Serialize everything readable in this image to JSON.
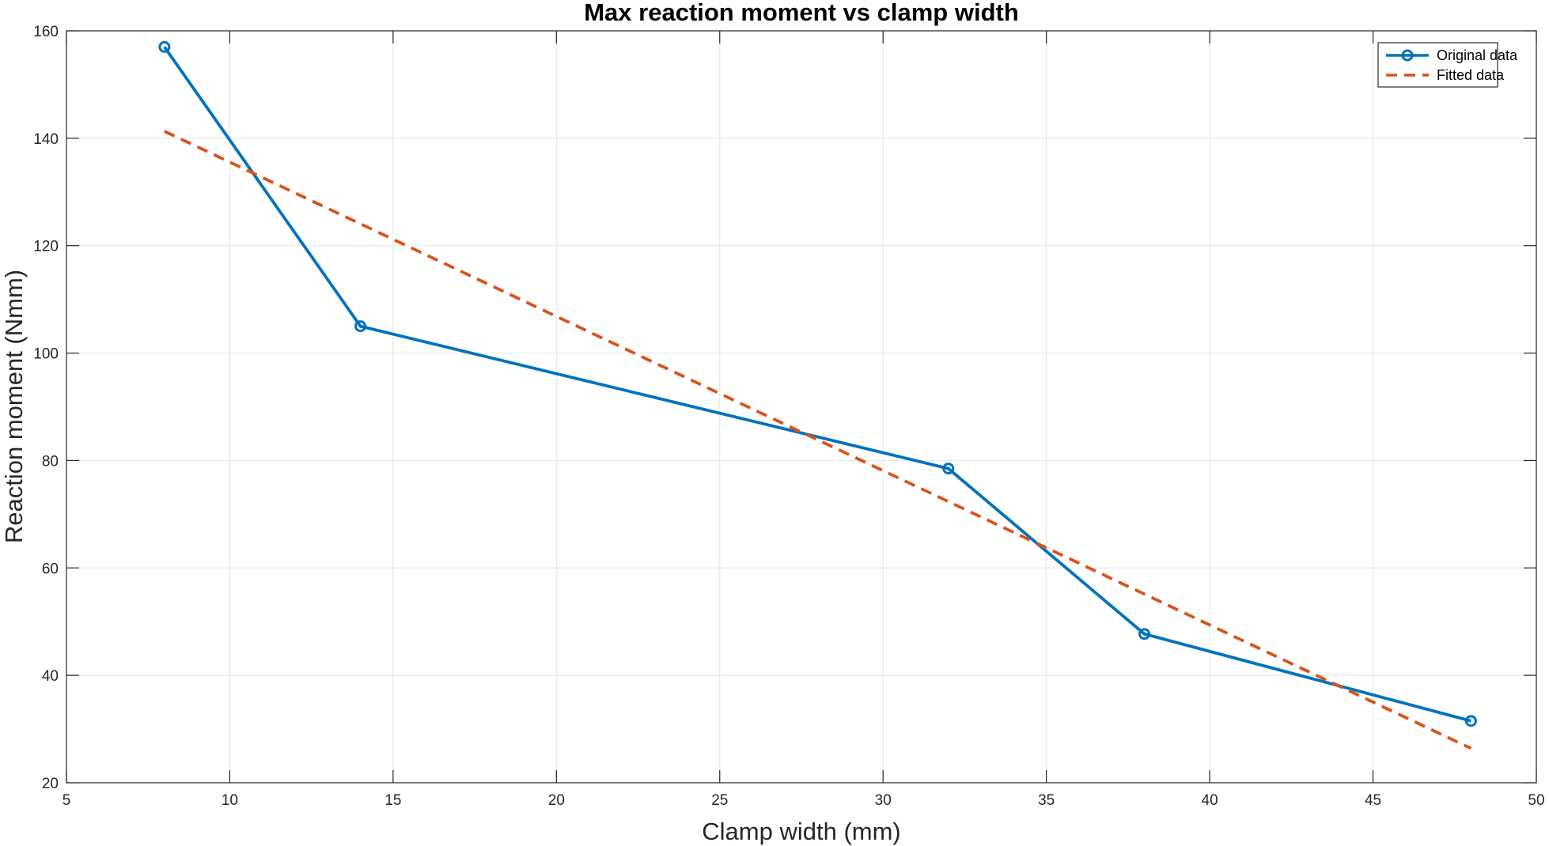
{
  "chart_data": {
    "type": "line",
    "title": "Max reaction moment vs clamp width",
    "xlabel": "Clamp width (mm)",
    "ylabel": "Reaction moment (Nmm)",
    "xlim": [
      5,
      50
    ],
    "ylim": [
      20,
      160
    ],
    "xticks": [
      5,
      10,
      15,
      20,
      25,
      30,
      35,
      40,
      45,
      50
    ],
    "yticks": [
      20,
      40,
      60,
      80,
      100,
      120,
      140,
      160
    ],
    "grid": true,
    "legend_position": "top-right",
    "series": [
      {
        "name": "Original data",
        "style": "solid-with-circle-markers",
        "color": "#0072BD",
        "x": [
          8,
          14,
          32,
          38,
          48
        ],
        "y": [
          157,
          105,
          78.5,
          47.7,
          31.5
        ]
      },
      {
        "name": "Fitted data",
        "style": "dashed",
        "color": "#D95319",
        "x": [
          8,
          48
        ],
        "y": [
          141.3,
          26.4
        ]
      }
    ]
  }
}
